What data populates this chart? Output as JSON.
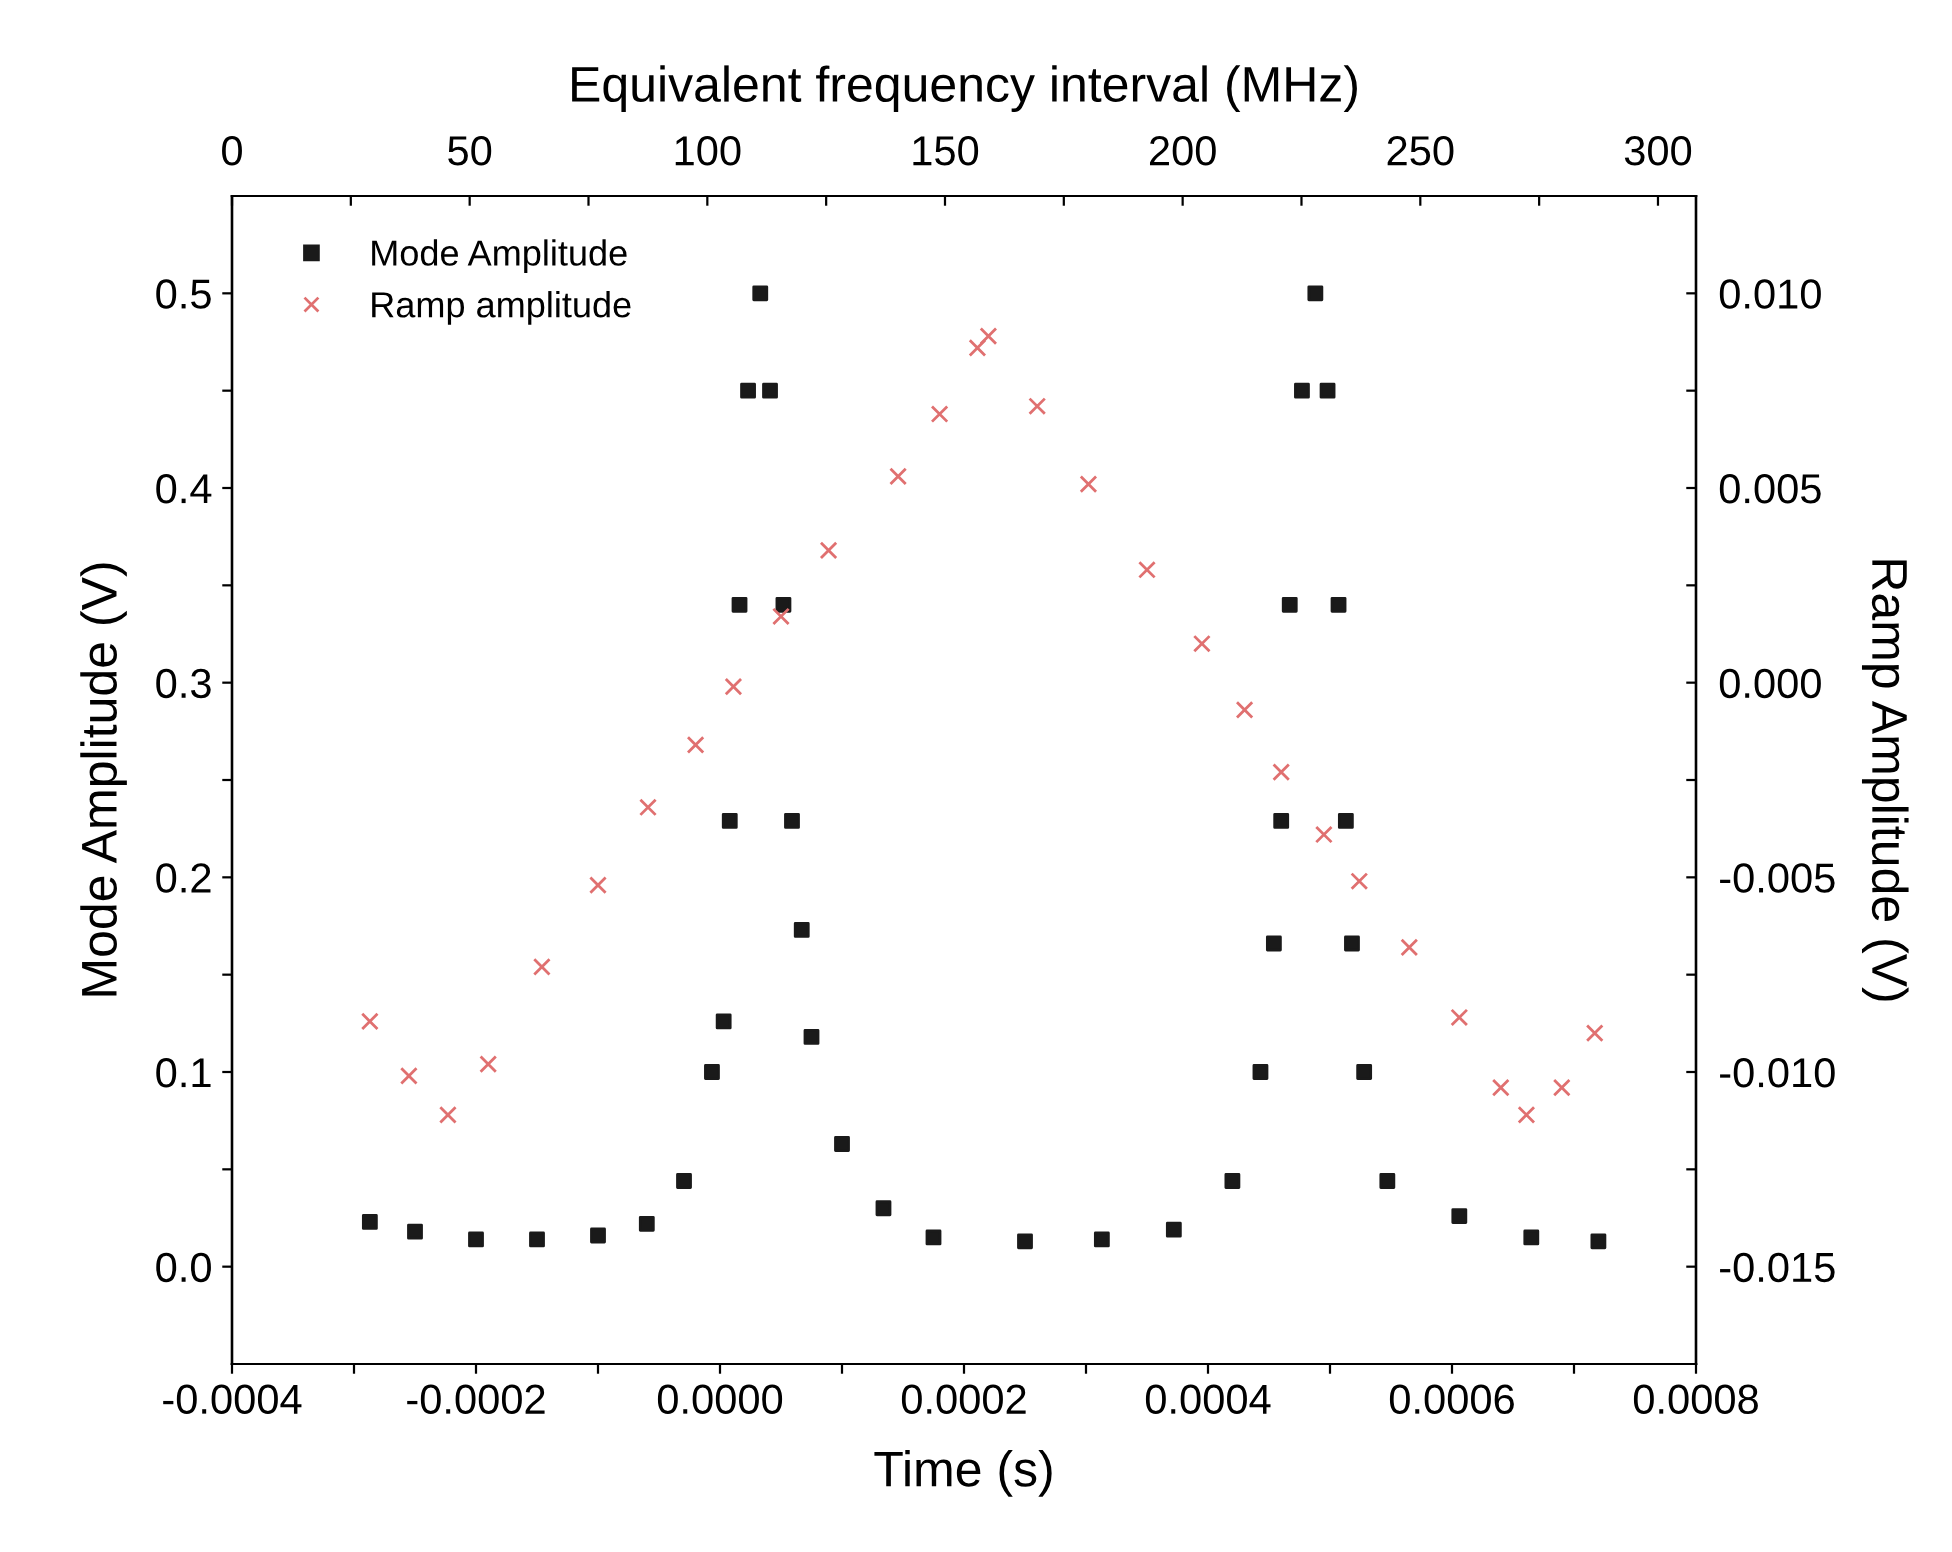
{
  "chart_data": {
    "type": "scatter",
    "xlabel": "Time (s)",
    "ylabel": "Mode Amplitude (V)",
    "y2label": "Ramp Amplitude (V)",
    "x2label": "Equivalent frequency interval (MHz)",
    "xlim": [
      -0.0004,
      0.0008
    ],
    "xticks": [
      {
        "value": -0.0004,
        "label": "-0.0004"
      },
      {
        "value": -0.0003,
        "label": null
      },
      {
        "value": -0.0002,
        "label": "-0.0002"
      },
      {
        "value": -0.0001,
        "label": null
      },
      {
        "value": 0.0,
        "label": "0.0000"
      },
      {
        "value": 0.0001,
        "label": null
      },
      {
        "value": 0.0002,
        "label": "0.0002"
      },
      {
        "value": 0.0003,
        "label": null
      },
      {
        "value": 0.0004,
        "label": "0.0004"
      },
      {
        "value": 0.0005,
        "label": null
      },
      {
        "value": 0.0006,
        "label": "0.0006"
      },
      {
        "value": 0.0007,
        "label": null
      },
      {
        "value": 0.0008,
        "label": "0.0008"
      }
    ],
    "ylim": [
      -0.05,
      0.55
    ],
    "yticks": [
      {
        "value": 0.0,
        "label": "0.0"
      },
      {
        "value": 0.05,
        "label": null
      },
      {
        "value": 0.1,
        "label": "0.1"
      },
      {
        "value": 0.15,
        "label": null
      },
      {
        "value": 0.2,
        "label": "0.2"
      },
      {
        "value": 0.25,
        "label": null
      },
      {
        "value": 0.3,
        "label": "0.3"
      },
      {
        "value": 0.35,
        "label": null
      },
      {
        "value": 0.4,
        "label": "0.4"
      },
      {
        "value": 0.45,
        "label": null
      },
      {
        "value": 0.5,
        "label": "0.5"
      }
    ],
    "y2lim": [
      -0.0175,
      0.0125
    ],
    "y2ticks": [
      {
        "value": -0.015,
        "label": "-0.015"
      },
      {
        "value": -0.0125,
        "label": null
      },
      {
        "value": -0.01,
        "label": "-0.010"
      },
      {
        "value": -0.0075,
        "label": null
      },
      {
        "value": -0.005,
        "label": "-0.005"
      },
      {
        "value": -0.0025,
        "label": null
      },
      {
        "value": 0.0,
        "label": "0.000"
      },
      {
        "value": 0.0025,
        "label": null
      },
      {
        "value": 0.005,
        "label": "0.005"
      },
      {
        "value": 0.0075,
        "label": null
      },
      {
        "value": 0.01,
        "label": "0.010"
      }
    ],
    "x2lim": [
      0,
      308
    ],
    "x2ticks": [
      0,
      {
        "value": 25,
        "label": null
      },
      50,
      {
        "value": 75,
        "label": null
      },
      100,
      {
        "value": 125,
        "label": null
      },
      150,
      {
        "value": 175,
        "label": null
      },
      200,
      {
        "value": 225,
        "label": null
      },
      250,
      {
        "value": 275,
        "label": null
      },
      300
    ],
    "legend": "top left",
    "grid": false,
    "series": [
      {
        "name": "Mode Amplitude",
        "color": "#1a1a1a",
        "marker": "square",
        "x": [
          -0.000287,
          -0.00025,
          -0.0002,
          -0.00015,
          -0.0001,
          -6e-05,
          -2.95e-05,
          -6.6e-06,
          3e-06,
          8e-06,
          1.6e-05,
          2.3e-05,
          3.3e-05,
          4.1e-05,
          5.2e-05,
          5.9e-05,
          6.7e-05,
          7.5e-05,
          0.0001,
          0.000134,
          0.000175,
          0.00025,
          0.000313,
          0.000372,
          0.00042,
          0.000443,
          0.000454,
          0.00046,
          0.000467,
          0.000477,
          0.000488,
          0.000498,
          0.000507,
          0.000513,
          0.000518,
          0.000528,
          0.000547,
          0.000606,
          0.000665,
          0.00072
        ],
        "values": [
          0.023,
          0.018,
          0.014,
          0.014,
          0.016,
          0.022,
          0.044,
          0.1,
          0.126,
          0.229,
          0.34,
          0.45,
          0.5,
          0.45,
          0.34,
          0.229,
          0.173,
          0.118,
          0.063,
          0.03,
          0.015,
          0.013,
          0.014,
          0.019,
          0.044,
          0.1,
          0.166,
          0.229,
          0.34,
          0.45,
          0.5,
          0.45,
          0.34,
          0.229,
          0.166,
          0.1,
          0.044,
          0.026,
          0.015,
          0.013
        ]
      },
      {
        "name": "Ramp amplitude",
        "color": "#e07070",
        "marker": "cross",
        "axis": "y2",
        "x": [
          -0.000287,
          -0.000255,
          -0.000223,
          -0.00019,
          -0.000146,
          -0.0001,
          -5.9e-05,
          -2e-05,
          1.1e-05,
          5e-05,
          8.9e-05,
          0.000146,
          0.00018,
          0.000211,
          0.00022,
          0.00026,
          0.000302,
          0.00035,
          0.000395,
          0.00043,
          0.00046,
          0.000495,
          0.000524,
          0.000565,
          0.000606,
          0.00064,
          0.000661,
          0.00069,
          0.000717
        ],
        "values": [
          -0.0087,
          -0.0101,
          -0.0111,
          -0.0098,
          -0.0073,
          -0.0052,
          -0.0032,
          -0.0016,
          -0.0001,
          0.0017,
          0.0034,
          0.0053,
          0.0069,
          0.0086,
          0.0089,
          0.0071,
          0.0051,
          0.0029,
          0.001,
          -0.0007,
          -0.0023,
          -0.0039,
          -0.0051,
          -0.0068,
          -0.0086,
          -0.0104,
          -0.0111,
          -0.0104,
          -0.009
        ]
      }
    ]
  }
}
